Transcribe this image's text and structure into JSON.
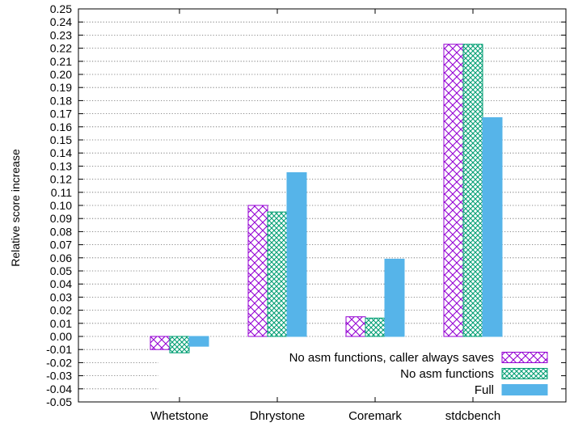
{
  "chart_data": {
    "type": "bar",
    "title": "",
    "xlabel": "",
    "ylabel": "Relative score increase",
    "ylim": [
      -0.05,
      0.25
    ],
    "ytick_step": 0.01,
    "grid": true,
    "legend_position": "bottom-right",
    "categories": [
      "Whetstone",
      "Dhrystone",
      "Coremark",
      "stdcbench"
    ],
    "series": [
      {
        "name": "No asm functions, caller always saves",
        "pattern": "diagonal-crosshatch",
        "color": "#9400d3",
        "values": [
          -0.01,
          0.1,
          0.015,
          0.223
        ]
      },
      {
        "name": "No asm functions",
        "pattern": "fine-crosshatch",
        "color": "#009e73",
        "values": [
          -0.0125,
          0.095,
          0.014,
          0.223
        ]
      },
      {
        "name": "Full",
        "pattern": "solid",
        "color": "#56b4e9",
        "values": [
          -0.0075,
          0.125,
          0.059,
          0.167
        ]
      }
    ]
  }
}
